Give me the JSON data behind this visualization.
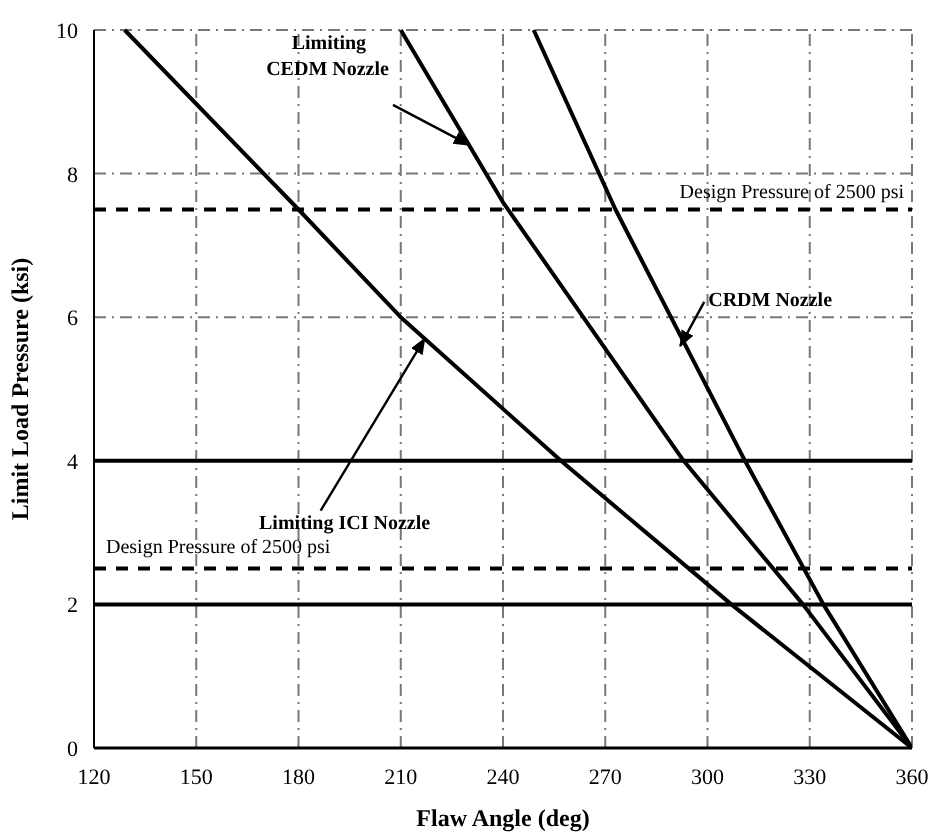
{
  "chart_data": {
    "type": "line",
    "xlabel": "Flaw Angle (deg)",
    "ylabel": "Limit Load Pressure (ksi)",
    "xlim": [
      120,
      360
    ],
    "xticks": [
      120,
      150,
      180,
      210,
      240,
      270,
      300,
      330,
      360
    ],
    "ylim": [
      0,
      10
    ],
    "yticks": [
      0,
      2,
      4,
      6,
      8,
      10
    ],
    "grid": true,
    "marker": "none",
    "line_style": "solid",
    "series": [
      {
        "color": "#000000",
        "x": [
          129,
          180,
          210,
          257,
          307,
          360
        ],
        "values": [
          10,
          7.5,
          6.0,
          4,
          2,
          0
        ]
      },
      {
        "color": "#000000",
        "x": [
          210,
          240,
          293,
          328,
          360
        ],
        "values": [
          10,
          7.6,
          4,
          2,
          0
        ]
      },
      {
        "color": "#000000",
        "x": [
          249,
          273,
          311,
          334,
          360
        ],
        "values": [
          10,
          7.5,
          4,
          2,
          0
        ]
      }
    ],
    "ref_lines": [
      {
        "axis": "y",
        "value": 7.5,
        "label": "Design Pressure of 2500 psi",
        "line_style": "dashed",
        "color": "#000000"
      },
      {
        "axis": "y",
        "value": 2.5,
        "label": "Design Pressure of 2500 psi",
        "line_style": "dashed",
        "color": "#000000"
      },
      {
        "axis": "y",
        "value": 4,
        "color": "#000000",
        "line_style": "solid"
      },
      {
        "axis": "y",
        "value": 2,
        "color": "#000000",
        "line_style": "solid"
      }
    ],
    "annotations": [
      {
        "text": "Limiting\nCEDM Nozzle",
        "x": 230,
        "y": 8.4
      },
      {
        "text": "CRDM Nozzle",
        "x": 292,
        "y": 5.6
      },
      {
        "text": "Limiting ICI Nozzle",
        "x": 217,
        "y": 5.7
      }
    ]
  }
}
